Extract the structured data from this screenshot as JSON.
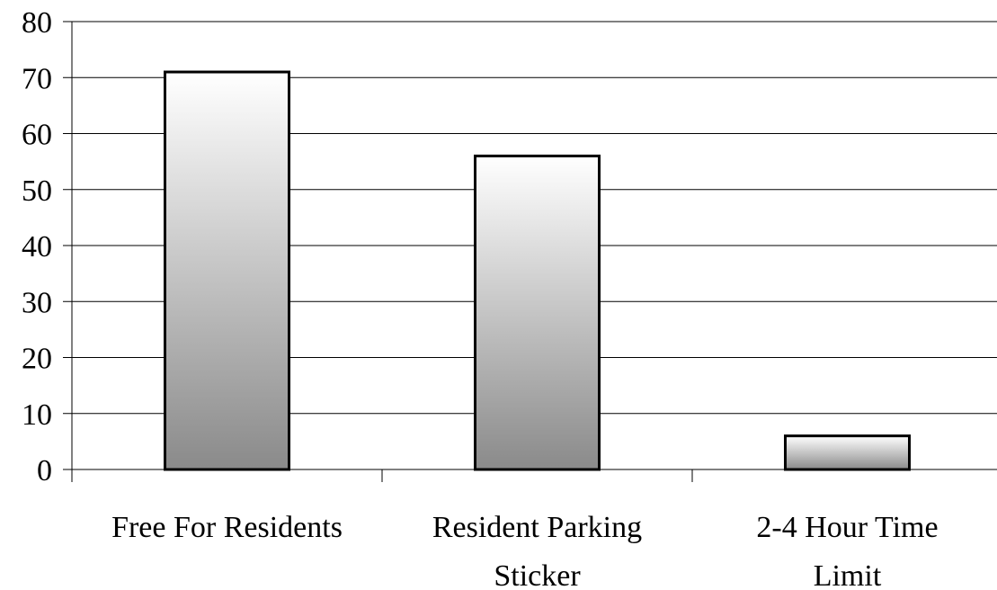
{
  "chart_data": {
    "type": "bar",
    "title": "",
    "xlabel": "",
    "ylabel": "",
    "ylim": [
      0,
      80
    ],
    "yticks": [
      0,
      10,
      20,
      30,
      40,
      50,
      60,
      70,
      80
    ],
    "grid": true,
    "categories": [
      [
        "Free For Residents"
      ],
      [
        "Resident Parking",
        "Sticker"
      ],
      [
        "2-4 Hour Time",
        "Limit"
      ]
    ],
    "values": [
      71,
      56,
      6
    ]
  }
}
